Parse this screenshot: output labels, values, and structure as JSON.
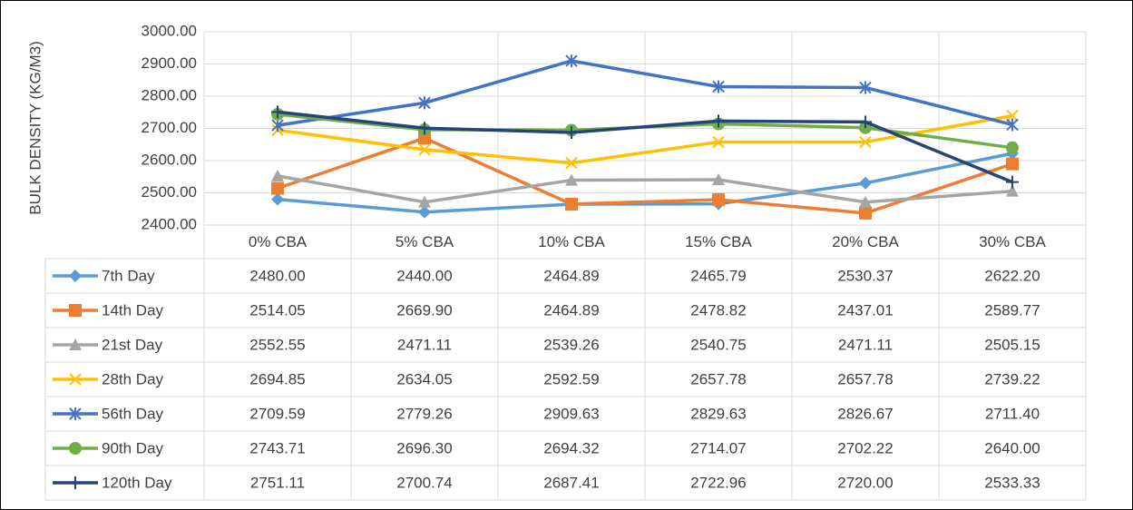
{
  "chart_data": {
    "type": "line",
    "y_label": "BULK DENSITY (KG/M3)",
    "categories": [
      "0% CBA",
      "5% CBA",
      "10% CBA",
      "15% CBA",
      "20% CBA",
      "30% CBA"
    ],
    "ylim": [
      2400,
      3000
    ],
    "yticks": [
      {
        "value": 2400,
        "label": "2400.00"
      },
      {
        "value": 2500,
        "label": "2500.00"
      },
      {
        "value": 2600,
        "label": "2600.00"
      },
      {
        "value": 2700,
        "label": "2700.00"
      },
      {
        "value": 2800,
        "label": "2800.00"
      },
      {
        "value": 2900,
        "label": "2900.00"
      },
      {
        "value": 3000,
        "label": "3000.00"
      }
    ],
    "grid": true,
    "data_table": true,
    "series": [
      {
        "name": "7th Day",
        "color": "#5b9bd5",
        "marker": "diamond",
        "values": [
          2480,
          2440,
          2464.89,
          2465.79,
          2530.37,
          2622.2
        ],
        "value_labels": [
          "2480.00",
          "2440.00",
          "2464.89",
          "2465.79",
          "2530.37",
          "2622.20"
        ]
      },
      {
        "name": "14th Day",
        "color": "#ed7d31",
        "marker": "square",
        "values": [
          2514.05,
          2669.9,
          2464.89,
          2478.82,
          2437.01,
          2589.77
        ],
        "value_labels": [
          "2514.05",
          "2669.90",
          "2464.89",
          "2478.82",
          "2437.01",
          "2589.77"
        ]
      },
      {
        "name": "21st Day",
        "color": "#a5a5a5",
        "marker": "triangle",
        "values": [
          2552.55,
          2471.11,
          2539.26,
          2540.75,
          2471.11,
          2505.15
        ],
        "value_labels": [
          "2552.55",
          "2471.11",
          "2539.26",
          "2540.75",
          "2471.11",
          "2505.15"
        ]
      },
      {
        "name": "28th Day",
        "color": "#ffc000",
        "marker": "x",
        "values": [
          2694.85,
          2634.05,
          2592.59,
          2657.78,
          2657.78,
          2739.22
        ],
        "value_labels": [
          "2694.85",
          "2634.05",
          "2592.59",
          "2657.78",
          "2657.78",
          "2739.22"
        ]
      },
      {
        "name": "56th Day",
        "color": "#4472c4",
        "marker": "asterisk",
        "values": [
          2709.59,
          2779.26,
          2909.63,
          2829.63,
          2826.67,
          2711.4
        ],
        "value_labels": [
          "2709.59",
          "2779.26",
          "2909.63",
          "2829.63",
          "2826.67",
          "2711.40"
        ]
      },
      {
        "name": "90th Day",
        "color": "#70ad47",
        "marker": "circle",
        "values": [
          2743.71,
          2696.3,
          2694.32,
          2714.07,
          2702.22,
          2640
        ],
        "value_labels": [
          "2743.71",
          "2696.30",
          "2694.32",
          "2714.07",
          "2702.22",
          "2640.00"
        ]
      },
      {
        "name": "120th Day",
        "color": "#264478",
        "marker": "plus",
        "values": [
          2751.11,
          2700.74,
          2687.41,
          2722.96,
          2720,
          2533.33
        ],
        "value_labels": [
          "2751.11",
          "2700.74",
          "2687.41",
          "2722.96",
          "2720.00",
          "2533.33"
        ]
      }
    ]
  }
}
